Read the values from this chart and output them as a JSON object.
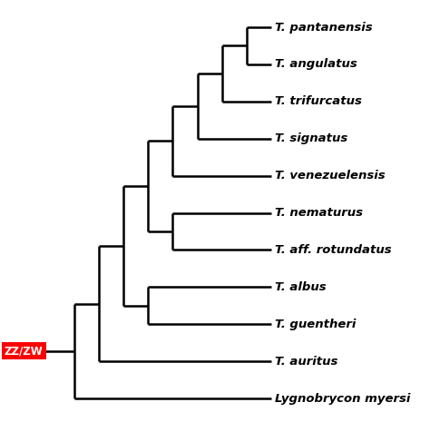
{
  "taxa": [
    "T. pantanensis",
    "T. angulatus",
    "T. trifurcatus",
    "T. signatus",
    "T. venezuelensis",
    "T. nematurus",
    "T. aff. rotundatus",
    "T. albus",
    "T. guentheri",
    "T. auritus",
    "Lygnobrycon myersi"
  ],
  "leaf_y": {
    "T. pantanensis": 10,
    "T. angulatus": 9,
    "T. trifurcatus": 8,
    "T. signatus": 7,
    "T. venezuelensis": 6,
    "T. nematurus": 5,
    "T. aff. rotundatus": 4,
    "T. albus": 3,
    "T. guentheri": 2,
    "T. auritus": 1,
    "Lygnobrycon myersi": 0
  },
  "label": "ZZ/ZW",
  "label_bg": "#ff0000",
  "label_fg": "#ffffff",
  "line_color": "#000000",
  "line_width": 1.8,
  "bg_color": "#ffffff",
  "font_size": 9.5,
  "label_font_size": 8.5
}
